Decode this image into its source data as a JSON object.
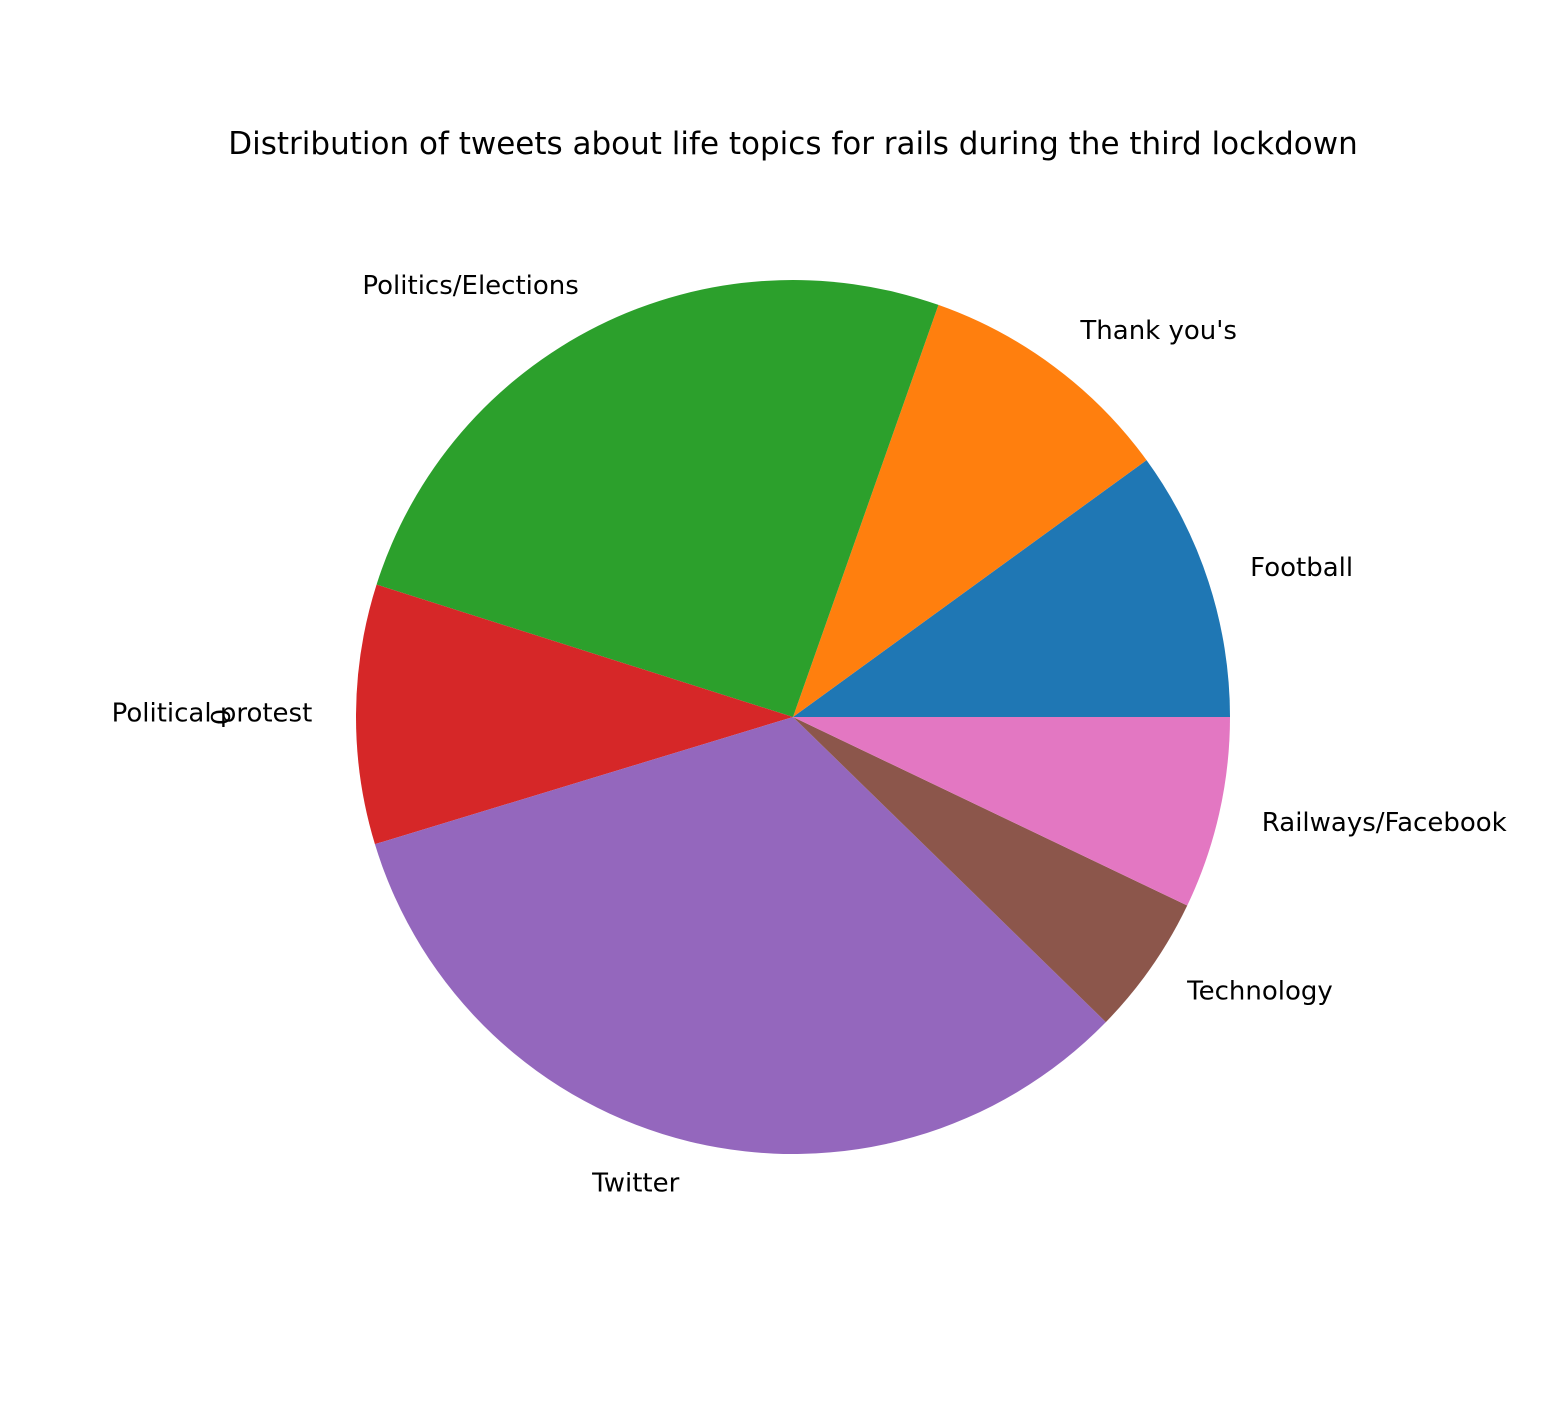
{
  "chart_data": {
    "type": "pie",
    "title": "Distribution of tweets about life topics for rails during the third lockdown",
    "ylabel": "0",
    "start_angle_deg": 0,
    "direction": "counterclockwise",
    "slices": [
      {
        "label": "Football",
        "value": 10.0,
        "color": "#1f77b4"
      },
      {
        "label": "Thank you's",
        "value": 9.6,
        "color": "#ff7f0e"
      },
      {
        "label": "Politics/Elections",
        "value": 25.5,
        "color": "#2ca02c"
      },
      {
        "label": "Political protest",
        "value": 9.6,
        "color": "#d62728"
      },
      {
        "label": "Twitter",
        "value": 33.0,
        "color": "#9467bd"
      },
      {
        "label": "Technology",
        "value": 5.2,
        "color": "#8c564b"
      },
      {
        "label": "Railways/Facebook",
        "value": 7.1,
        "color": "#e377c2"
      }
    ]
  }
}
